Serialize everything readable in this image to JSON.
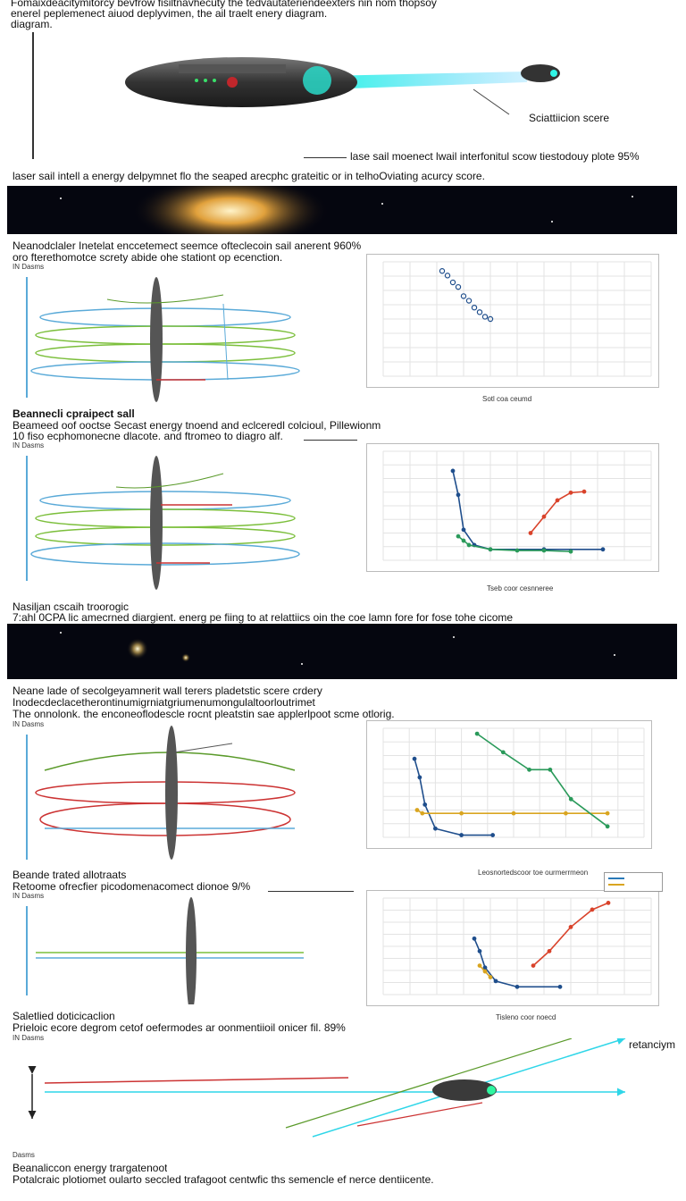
{
  "header": {
    "line1": "Fomaixdeacitymitorcy bevfrow fisiltnavhecuty the tedvautateriendeexters nin nom thopsoy",
    "line2": "enerel peplemenect aiuod deplyvimen, the ail traelt enery diagram.",
    "line3": "diagram.",
    "callout_label": "Sciattiicion scere",
    "footnote": "lase sail moenect lwail interfonitul scow tiestodouy plote 95%"
  },
  "band1_caption": "laser sail intell a energy delpymnet flo the seaped arecphc grateitic or in telhoOviating acurcy score.",
  "section1": {
    "title": "Neanodclaler Inetelat enccetemect seemce ofteclecoin sail anerent 960%",
    "subtitle": "oro fterethomotce screty abide ohe stationt op ecenction.",
    "tag": "IN Dasms"
  },
  "section2": {
    "title": "Beannecli cpraipect sall",
    "subtitle1": "Beameed oof ooctse Secast energy tnoend and eclceredl colcioul, Pillewionm",
    "subtitle2": "10 fiso ecphomonecne dlacote.  and ftromeo to diagro alf.",
    "tag": "IN Dasms"
  },
  "section3": {
    "title": "Nasiljan cscaih troorogic",
    "subtitle": "7:ahl  0CPA lic amecrned diargient. energ pe fiing to at relattiics oin the coe lamn fore for fose tohe cicome"
  },
  "section4": {
    "title": "Neane lade of secolgeyamnerit wall terers pladetstic scere crdery",
    "subtitle1": "Inodecdeclacetherontinumigrniatgriumenumongulaltoorloutrimet",
    "subtitle2": "The onnolonk. the enconeoflodescle rocnt pleatstin sae applerlpoot scme otlorig.",
    "tag": "IN Dasms"
  },
  "section5": {
    "title": "Beande trated allotraats",
    "subtitle": "Retoome ofrecfier picodomenacomect dionoe 9/%",
    "tag": "IN Dasms"
  },
  "section6": {
    "title": "Saletlied doticicaclion",
    "subtitle": "Prieloic ecore degrom cetof oefermodes ar oonmentiioil onicer fil. 89%",
    "tag": "IN Dasms",
    "arrow_label": "retanciym"
  },
  "footer": {
    "tag": "Dasms",
    "title": "Beanaliccon energy trargatenoot",
    "subtitle": "Potalcraic plotiomet oularto seccled trafagoot centwfic ths semencle ef nerce dentiicente."
  },
  "chart_data": [
    {
      "type": "scatter",
      "title": "",
      "xlabel": "Sotl coa ceumd",
      "ylabel": "",
      "series": [
        {
          "x": [
            2.2,
            2.4,
            2.6,
            2.8,
            3.0,
            3.2,
            3.4,
            3.6,
            3.8,
            4.0
          ],
          "y": [
            92,
            88,
            82,
            78,
            70,
            66,
            60,
            56,
            52,
            50
          ]
        }
      ],
      "xlim": [
        0,
        10
      ],
      "ylim": [
        0,
        100
      ],
      "grid": true
    },
    {
      "type": "line",
      "title": "",
      "xlabel": "Tseb coor cesnneree",
      "ylabel": "",
      "series": [
        {
          "x": [
            2.6,
            2.8,
            3.0,
            3.4,
            4.0,
            6.0,
            8.2
          ],
          "y": [
            82,
            60,
            28,
            14,
            10,
            10,
            10
          ]
        },
        {
          "x": [
            2.8,
            3.0,
            3.2,
            4.0,
            5.0,
            6.0,
            7.0
          ],
          "y": [
            22,
            18,
            14,
            10,
            9,
            9,
            8
          ]
        },
        {
          "x": [
            5.5,
            6.0,
            6.5,
            7.0,
            7.5
          ],
          "y": [
            25,
            40,
            55,
            62,
            63
          ]
        }
      ],
      "xlim": [
        0,
        10
      ],
      "ylim": [
        0,
        100
      ],
      "grid": true
    },
    {
      "type": "line",
      "title": "",
      "xlabel": "Leosnortedscoor toe ourmerrmeon",
      "ylabel": "",
      "series": [
        {
          "x": [
            1.2,
            1.4,
            1.6,
            2.0,
            3.0,
            4.2
          ],
          "y": [
            72,
            55,
            30,
            8,
            2,
            2
          ]
        },
        {
          "x": [
            1.3,
            1.5,
            3.0,
            5.0,
            7.0,
            8.6
          ],
          "y": [
            25,
            22,
            22,
            22,
            22,
            22
          ]
        },
        {
          "x": [
            3.6,
            4.6,
            5.6,
            6.4,
            7.2,
            8.6
          ],
          "y": [
            95,
            78,
            62,
            62,
            35,
            10
          ]
        }
      ],
      "xlim": [
        0,
        10
      ],
      "ylim": [
        0,
        100
      ],
      "grid": true
    },
    {
      "type": "line",
      "title": "",
      "xlabel": "Tisleno coor noecd",
      "ylabel": "",
      "series": [
        {
          "x": [
            3.4,
            3.6,
            3.8,
            4.2,
            5.0,
            6.6
          ],
          "y": [
            58,
            45,
            28,
            14,
            8,
            8
          ]
        },
        {
          "x": [
            3.6,
            3.8,
            4.0
          ],
          "y": [
            30,
            24,
            18
          ]
        },
        {
          "x": [
            5.6,
            6.2,
            7.0,
            7.8,
            8.4
          ],
          "y": [
            30,
            45,
            70,
            88,
            95
          ]
        }
      ],
      "xlim": [
        0,
        10
      ],
      "ylim": [
        0,
        100
      ],
      "grid": true
    }
  ]
}
